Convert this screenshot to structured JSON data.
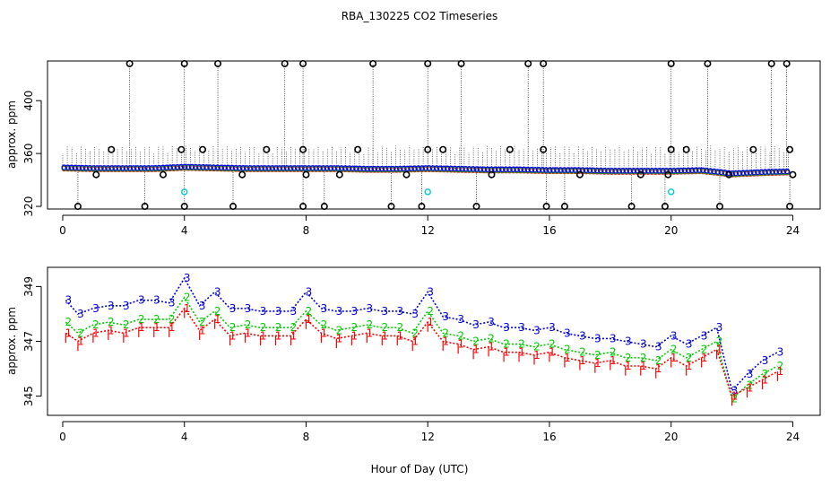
{
  "chart_data": [
    {
      "type": "scatter",
      "title": "RBA_130225  CO2 Timeseries",
      "xlabel": "",
      "ylabel": "approx. ppm",
      "xlim": [
        -0.5,
        24.9
      ],
      "ylim": [
        318,
        430
      ],
      "xticks": [
        "0",
        "4",
        "8",
        "12",
        "16",
        "20",
        "24"
      ],
      "xtick_values": [
        0,
        4,
        8,
        12,
        16,
        20,
        24
      ],
      "yticks": [
        "320",
        "360",
        "400"
      ],
      "ytick_values": [
        320,
        360,
        400
      ],
      "baseline": [
        {
          "x": 0,
          "y": 349.5
        },
        {
          "x": 1,
          "y": 349
        },
        {
          "x": 2,
          "y": 349
        },
        {
          "x": 3,
          "y": 349
        },
        {
          "x": 4,
          "y": 350
        },
        {
          "x": 5,
          "y": 349.5
        },
        {
          "x": 6,
          "y": 349
        },
        {
          "x": 7,
          "y": 349
        },
        {
          "x": 8,
          "y": 349
        },
        {
          "x": 9,
          "y": 349
        },
        {
          "x": 10,
          "y": 348.5
        },
        {
          "x": 11,
          "y": 348.5
        },
        {
          "x": 12,
          "y": 349
        },
        {
          "x": 13,
          "y": 348.5
        },
        {
          "x": 14,
          "y": 348
        },
        {
          "x": 15,
          "y": 348
        },
        {
          "x": 16,
          "y": 347.5
        },
        {
          "x": 17,
          "y": 347.5
        },
        {
          "x": 18,
          "y": 347
        },
        {
          "x": 19,
          "y": 347
        },
        {
          "x": 20,
          "y": 347
        },
        {
          "x": 21,
          "y": 347.5
        },
        {
          "x": 22,
          "y": 345
        },
        {
          "x": 23,
          "y": 346
        },
        {
          "x": 23.8,
          "y": 346.5
        }
      ],
      "high_outliers": [
        2.2,
        4.0,
        5.1,
        7.3,
        7.9,
        10.2,
        12.0,
        13.1,
        15.3,
        15.8,
        20.0,
        21.2,
        23.3,
        23.8
      ],
      "mid_outliers": [
        1.6,
        3.9,
        4.6,
        6.7,
        7.9,
        9.7,
        12.0,
        12.5,
        14.7,
        15.8,
        20.0,
        20.5,
        22.7,
        23.9
      ],
      "low_outliers": [
        0.5,
        2.7,
        4.0,
        5.6,
        7.9,
        8.6,
        10.8,
        11.8,
        13.6,
        15.9,
        16.5,
        18.7,
        19.8,
        21.6,
        23.9
      ],
      "mid_low_points": [
        1.1,
        3.3,
        5.9,
        8.0,
        9.1,
        11.3,
        14.1,
        17.0,
        19.0,
        19.9,
        21.9,
        24.0
      ],
      "cyan_points": [
        {
          "x": 4.0,
          "y": 331
        },
        {
          "x": 12.0,
          "y": 331
        },
        {
          "x": 20.0,
          "y": 331
        }
      ],
      "colors": {
        "series_blue": "#0000ff",
        "series_green": "#00cc00",
        "series_red": "#ff0000",
        "series_cyan": "#00cccc",
        "outlier": "#000000",
        "axis": "#000000"
      }
    },
    {
      "type": "line",
      "title": "",
      "xlabel": "Hour of Day (UTC)",
      "ylabel": "approx. ppm",
      "xlim": [
        -0.5,
        24.9
      ],
      "ylim": [
        344.3,
        349.7
      ],
      "xticks": [
        "0",
        "4",
        "8",
        "12",
        "16",
        "20",
        "24"
      ],
      "xtick_values": [
        0,
        4,
        8,
        12,
        16,
        20,
        24
      ],
      "yticks": [
        "345",
        "347",
        "349"
      ],
      "ytick_values": [
        345,
        347,
        349
      ],
      "series_labels": [
        "1",
        "2",
        "3"
      ],
      "series": [
        {
          "name": "3",
          "color": "#0000cc",
          "points": [
            {
              "x": 0.1,
              "y": 348.5
            },
            {
              "x": 0.5,
              "y": 348.0
            },
            {
              "x": 1.0,
              "y": 348.2
            },
            {
              "x": 1.5,
              "y": 348.3
            },
            {
              "x": 2.0,
              "y": 348.3
            },
            {
              "x": 2.5,
              "y": 348.5
            },
            {
              "x": 3.0,
              "y": 348.5
            },
            {
              "x": 3.5,
              "y": 348.4
            },
            {
              "x": 4.0,
              "y": 349.3
            },
            {
              "x": 4.5,
              "y": 348.3
            },
            {
              "x": 5.0,
              "y": 348.8
            },
            {
              "x": 5.5,
              "y": 348.2
            },
            {
              "x": 6.0,
              "y": 348.2
            },
            {
              "x": 6.5,
              "y": 348.1
            },
            {
              "x": 7.0,
              "y": 348.1
            },
            {
              "x": 7.5,
              "y": 348.1
            },
            {
              "x": 8.0,
              "y": 348.8
            },
            {
              "x": 8.5,
              "y": 348.2
            },
            {
              "x": 9.0,
              "y": 348.1
            },
            {
              "x": 9.5,
              "y": 348.1
            },
            {
              "x": 10.0,
              "y": 348.2
            },
            {
              "x": 10.5,
              "y": 348.1
            },
            {
              "x": 11.0,
              "y": 348.1
            },
            {
              "x": 11.5,
              "y": 348.0
            },
            {
              "x": 12.0,
              "y": 348.8
            },
            {
              "x": 12.5,
              "y": 347.9
            },
            {
              "x": 13.0,
              "y": 347.8
            },
            {
              "x": 13.5,
              "y": 347.6
            },
            {
              "x": 14.0,
              "y": 347.7
            },
            {
              "x": 14.5,
              "y": 347.5
            },
            {
              "x": 15.0,
              "y": 347.5
            },
            {
              "x": 15.5,
              "y": 347.4
            },
            {
              "x": 16.0,
              "y": 347.5
            },
            {
              "x": 16.5,
              "y": 347.3
            },
            {
              "x": 17.0,
              "y": 347.2
            },
            {
              "x": 17.5,
              "y": 347.1
            },
            {
              "x": 18.0,
              "y": 347.1
            },
            {
              "x": 18.5,
              "y": 347.0
            },
            {
              "x": 19.0,
              "y": 346.9
            },
            {
              "x": 19.5,
              "y": 346.8
            },
            {
              "x": 20.0,
              "y": 347.2
            },
            {
              "x": 20.5,
              "y": 346.9
            },
            {
              "x": 21.0,
              "y": 347.2
            },
            {
              "x": 21.5,
              "y": 347.5
            },
            {
              "x": 22.0,
              "y": 345.2
            },
            {
              "x": 22.5,
              "y": 345.8
            },
            {
              "x": 23.0,
              "y": 346.3
            },
            {
              "x": 23.5,
              "y": 346.6
            }
          ]
        },
        {
          "name": "2",
          "color": "#00cc00",
          "points": [
            {
              "x": 0.1,
              "y": 347.7
            },
            {
              "x": 0.5,
              "y": 347.3
            },
            {
              "x": 1.0,
              "y": 347.6
            },
            {
              "x": 1.5,
              "y": 347.7
            },
            {
              "x": 2.0,
              "y": 347.6
            },
            {
              "x": 2.5,
              "y": 347.8
            },
            {
              "x": 3.0,
              "y": 347.8
            },
            {
              "x": 3.5,
              "y": 347.8
            },
            {
              "x": 4.0,
              "y": 348.6
            },
            {
              "x": 4.5,
              "y": 347.7
            },
            {
              "x": 5.0,
              "y": 348.1
            },
            {
              "x": 5.5,
              "y": 347.5
            },
            {
              "x": 6.0,
              "y": 347.6
            },
            {
              "x": 6.5,
              "y": 347.5
            },
            {
              "x": 7.0,
              "y": 347.5
            },
            {
              "x": 7.5,
              "y": 347.5
            },
            {
              "x": 8.0,
              "y": 348.1
            },
            {
              "x": 8.5,
              "y": 347.6
            },
            {
              "x": 9.0,
              "y": 347.4
            },
            {
              "x": 9.5,
              "y": 347.5
            },
            {
              "x": 10.0,
              "y": 347.6
            },
            {
              "x": 10.5,
              "y": 347.5
            },
            {
              "x": 11.0,
              "y": 347.5
            },
            {
              "x": 11.5,
              "y": 347.3
            },
            {
              "x": 12.0,
              "y": 348.1
            },
            {
              "x": 12.5,
              "y": 347.3
            },
            {
              "x": 13.0,
              "y": 347.2
            },
            {
              "x": 13.5,
              "y": 347.0
            },
            {
              "x": 14.0,
              "y": 347.1
            },
            {
              "x": 14.5,
              "y": 346.9
            },
            {
              "x": 15.0,
              "y": 346.9
            },
            {
              "x": 15.5,
              "y": 346.8
            },
            {
              "x": 16.0,
              "y": 346.9
            },
            {
              "x": 16.5,
              "y": 346.7
            },
            {
              "x": 17.0,
              "y": 346.6
            },
            {
              "x": 17.5,
              "y": 346.5
            },
            {
              "x": 18.0,
              "y": 346.6
            },
            {
              "x": 18.5,
              "y": 346.4
            },
            {
              "x": 19.0,
              "y": 346.4
            },
            {
              "x": 19.5,
              "y": 346.3
            },
            {
              "x": 20.0,
              "y": 346.7
            },
            {
              "x": 20.5,
              "y": 346.4
            },
            {
              "x": 21.0,
              "y": 346.7
            },
            {
              "x": 21.5,
              "y": 347.0
            },
            {
              "x": 22.0,
              "y": 344.9
            },
            {
              "x": 22.5,
              "y": 345.4
            },
            {
              "x": 23.0,
              "y": 345.8
            },
            {
              "x": 23.5,
              "y": 346.1
            }
          ]
        },
        {
          "name": "1",
          "color": "#ff0000",
          "points": [
            {
              "x": 0.1,
              "y": 347.3
            },
            {
              "x": 0.5,
              "y": 347.0
            },
            {
              "x": 1.0,
              "y": 347.3
            },
            {
              "x": 1.5,
              "y": 347.4
            },
            {
              "x": 2.0,
              "y": 347.3
            },
            {
              "x": 2.5,
              "y": 347.5
            },
            {
              "x": 3.0,
              "y": 347.5
            },
            {
              "x": 3.5,
              "y": 347.5
            },
            {
              "x": 4.0,
              "y": 348.2
            },
            {
              "x": 4.5,
              "y": 347.4
            },
            {
              "x": 5.0,
              "y": 347.8
            },
            {
              "x": 5.5,
              "y": 347.2
            },
            {
              "x": 6.0,
              "y": 347.3
            },
            {
              "x": 6.5,
              "y": 347.2
            },
            {
              "x": 7.0,
              "y": 347.2
            },
            {
              "x": 7.5,
              "y": 347.2
            },
            {
              "x": 8.0,
              "y": 347.8
            },
            {
              "x": 8.5,
              "y": 347.3
            },
            {
              "x": 9.0,
              "y": 347.1
            },
            {
              "x": 9.5,
              "y": 347.2
            },
            {
              "x": 10.0,
              "y": 347.3
            },
            {
              "x": 10.5,
              "y": 347.2
            },
            {
              "x": 11.0,
              "y": 347.2
            },
            {
              "x": 11.5,
              "y": 347.0
            },
            {
              "x": 12.0,
              "y": 347.7
            },
            {
              "x": 12.5,
              "y": 347.0
            },
            {
              "x": 13.0,
              "y": 346.9
            },
            {
              "x": 13.5,
              "y": 346.7
            },
            {
              "x": 14.0,
              "y": 346.8
            },
            {
              "x": 14.5,
              "y": 346.6
            },
            {
              "x": 15.0,
              "y": 346.6
            },
            {
              "x": 15.5,
              "y": 346.5
            },
            {
              "x": 16.0,
              "y": 346.6
            },
            {
              "x": 16.5,
              "y": 346.4
            },
            {
              "x": 17.0,
              "y": 346.3
            },
            {
              "x": 17.5,
              "y": 346.2
            },
            {
              "x": 18.0,
              "y": 346.3
            },
            {
              "x": 18.5,
              "y": 346.1
            },
            {
              "x": 19.0,
              "y": 346.1
            },
            {
              "x": 19.5,
              "y": 346.0
            },
            {
              "x": 20.0,
              "y": 346.4
            },
            {
              "x": 20.5,
              "y": 346.1
            },
            {
              "x": 21.0,
              "y": 346.4
            },
            {
              "x": 21.5,
              "y": 346.7
            },
            {
              "x": 22.0,
              "y": 345.0
            },
            {
              "x": 22.5,
              "y": 345.3
            },
            {
              "x": 23.0,
              "y": 345.6
            },
            {
              "x": 23.5,
              "y": 345.9
            }
          ]
        }
      ],
      "colors": {
        "axis": "#000000"
      }
    }
  ]
}
